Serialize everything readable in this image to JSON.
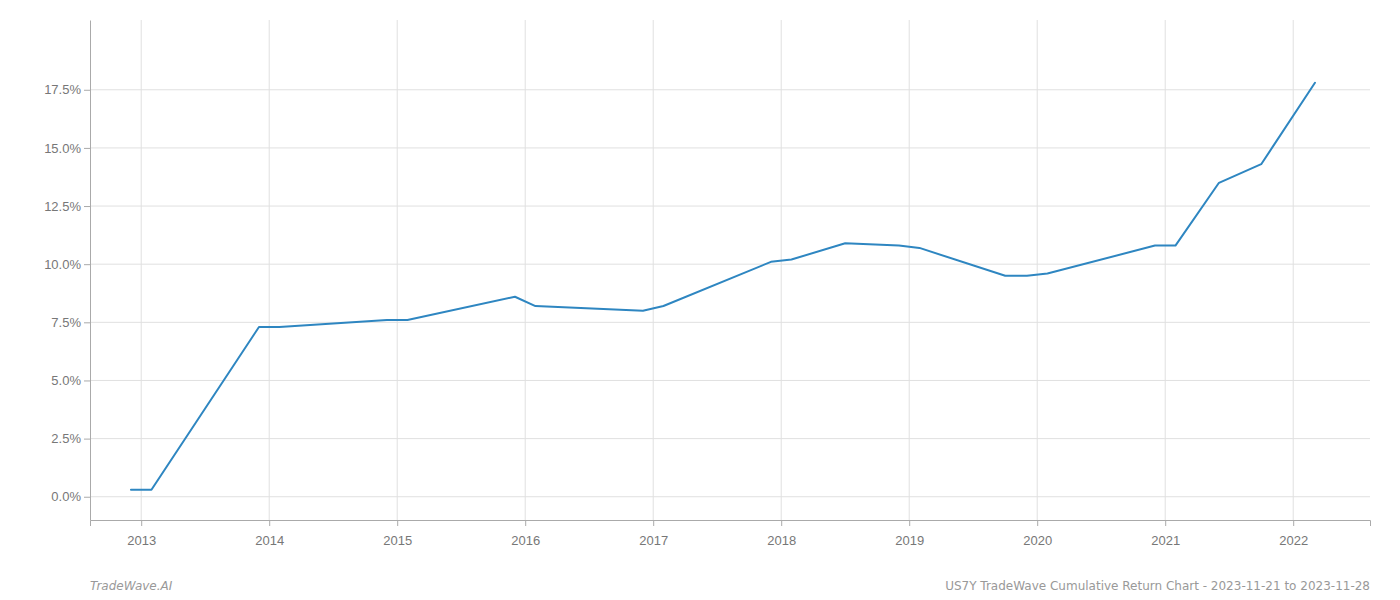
{
  "chart_data": {
    "type": "line",
    "x": [
      2012.92,
      2013.08,
      2013.92,
      2014.08,
      2014.92,
      2015.08,
      2015.92,
      2016.08,
      2016.92,
      2017.08,
      2017.92,
      2018.08,
      2018.5,
      2018.92,
      2019.08,
      2019.75,
      2019.92,
      2020.08,
      2020.92,
      2021.08,
      2021.42,
      2021.75,
      2022.17
    ],
    "values": [
      0.003,
      0.003,
      0.073,
      0.073,
      0.076,
      0.076,
      0.086,
      0.082,
      0.08,
      0.082,
      0.101,
      0.102,
      0.109,
      0.108,
      0.107,
      0.095,
      0.095,
      0.096,
      0.108,
      0.108,
      0.135,
      0.143,
      0.178
    ],
    "color": "#2e86c1",
    "xlim": [
      2012.6,
      2022.6
    ],
    "xticks": [
      2013,
      2014,
      2015,
      2016,
      2017,
      2018,
      2019,
      2020,
      2021,
      2022
    ],
    "ylim": [
      -0.01,
      0.205
    ],
    "yticks": [
      {
        "value": 0.0,
        "label": "0.0%"
      },
      {
        "value": 0.025,
        "label": "2.5%"
      },
      {
        "value": 0.05,
        "label": "5.0%"
      },
      {
        "value": 0.075,
        "label": "7.5%"
      },
      {
        "value": 0.1,
        "label": "10.0%"
      },
      {
        "value": 0.125,
        "label": "12.5%"
      },
      {
        "value": 0.15,
        "label": "15.0%"
      },
      {
        "value": 0.175,
        "label": "17.5%"
      }
    ],
    "grid": true,
    "annotations": [
      "TradeWave.AI",
      "US7Y TradeWave Cumulative Return Chart - 2023-11-21 to 2023-11-28"
    ]
  }
}
